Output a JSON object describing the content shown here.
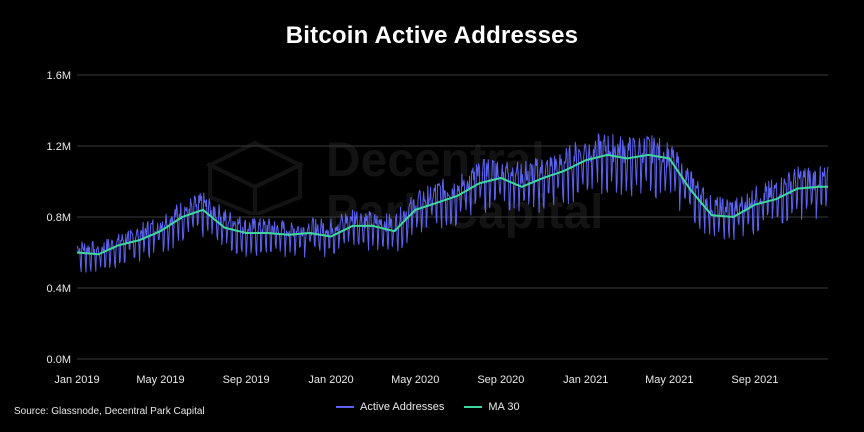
{
  "title": "Bitcoin Active Addresses",
  "source": "Source: Glassnode, Decentral Park Capital",
  "watermark": {
    "line1": "Decentral",
    "line2": "Park Capital"
  },
  "colors": {
    "background": "#000000",
    "active_addresses": "#5b63f0",
    "ma30": "#3fd6a0",
    "grid": "#3a3a3a"
  },
  "chart_data": {
    "type": "line",
    "title": "Bitcoin Active Addresses",
    "x_tick_labels": [
      "Jan 2019",
      "May 2019",
      "Sep 2019",
      "Jan 2020",
      "May 2020",
      "Sep 2020",
      "Jan 2021",
      "May 2021",
      "Sep 2021"
    ],
    "x_tick_dates": [
      "2019-01-01",
      "2019-05-01",
      "2019-09-01",
      "2020-01-01",
      "2020-05-01",
      "2020-09-01",
      "2021-01-01",
      "2021-05-01",
      "2021-09-01"
    ],
    "x_range": [
      "2019-01-01",
      "2021-12-15"
    ],
    "y_tick_labels": [
      "0.0M",
      "0.4M",
      "0.8M",
      "1.2M",
      "1.6M"
    ],
    "y_ticks": [
      0,
      0.4,
      0.8,
      1.2,
      1.6
    ],
    "ylim": [
      0,
      1.6
    ],
    "y_unit": "M",
    "grid": "horizontal",
    "legend_position": "bottom-center",
    "series": [
      {
        "name": "Active Addresses",
        "dates": [
          "2019-01-01",
          "2019-02-01",
          "2019-03-01",
          "2019-04-01",
          "2019-05-01",
          "2019-06-01",
          "2019-07-01",
          "2019-08-01",
          "2019-09-01",
          "2019-10-01",
          "2019-11-01",
          "2019-12-01",
          "2020-01-01",
          "2020-02-01",
          "2020-03-01",
          "2020-04-01",
          "2020-05-01",
          "2020-06-01",
          "2020-07-01",
          "2020-08-01",
          "2020-09-01",
          "2020-10-01",
          "2020-11-01",
          "2020-12-01",
          "2021-01-01",
          "2021-02-01",
          "2021-03-01",
          "2021-04-01",
          "2021-05-01",
          "2021-06-01",
          "2021-07-01",
          "2021-08-01",
          "2021-09-01",
          "2021-10-01",
          "2021-11-01",
          "2021-12-01"
        ],
        "values": [
          0.6,
          0.59,
          0.63,
          0.68,
          0.73,
          0.8,
          0.84,
          0.76,
          0.71,
          0.71,
          0.7,
          0.71,
          0.71,
          0.77,
          0.74,
          0.73,
          0.84,
          0.9,
          0.92,
          1.0,
          1.03,
          1.0,
          1.02,
          1.06,
          1.13,
          1.14,
          1.12,
          1.13,
          1.1,
          0.95,
          0.82,
          0.81,
          0.87,
          0.91,
          0.97,
          0.97
        ]
      },
      {
        "name": "MA 30",
        "dates": [
          "2019-01-01",
          "2019-02-01",
          "2019-03-01",
          "2019-04-01",
          "2019-05-01",
          "2019-06-01",
          "2019-07-01",
          "2019-08-01",
          "2019-09-01",
          "2019-10-01",
          "2019-11-01",
          "2019-12-01",
          "2020-01-01",
          "2020-02-01",
          "2020-03-01",
          "2020-04-01",
          "2020-05-01",
          "2020-06-01",
          "2020-07-01",
          "2020-08-01",
          "2020-09-01",
          "2020-10-01",
          "2020-11-01",
          "2020-12-01",
          "2021-01-01",
          "2021-02-01",
          "2021-03-01",
          "2021-04-01",
          "2021-05-01",
          "2021-06-01",
          "2021-07-01",
          "2021-08-01",
          "2021-09-01",
          "2021-10-01",
          "2021-11-01",
          "2021-12-01"
        ],
        "values": [
          0.6,
          0.59,
          0.64,
          0.67,
          0.72,
          0.8,
          0.84,
          0.74,
          0.71,
          0.71,
          0.7,
          0.71,
          0.69,
          0.75,
          0.75,
          0.72,
          0.84,
          0.88,
          0.92,
          0.99,
          1.02,
          0.97,
          1.02,
          1.06,
          1.12,
          1.15,
          1.13,
          1.15,
          1.13,
          0.95,
          0.81,
          0.8,
          0.87,
          0.9,
          0.96,
          0.97
        ]
      }
    ]
  }
}
